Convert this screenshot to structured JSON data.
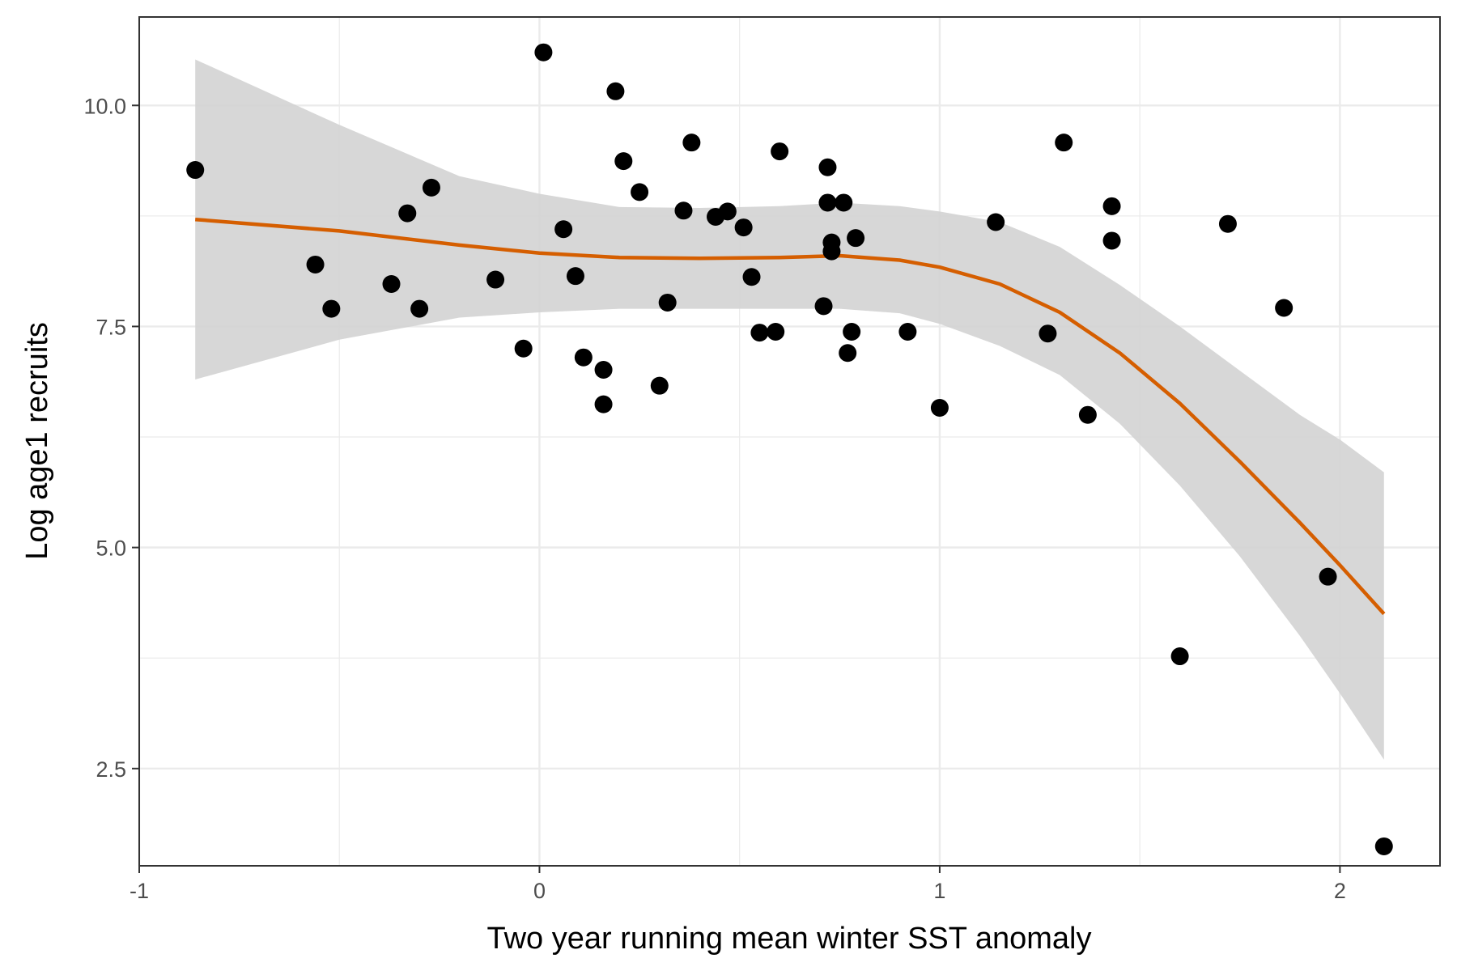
{
  "chart_data": {
    "type": "scatter",
    "title": "",
    "xlabel": "Two year running mean winter SST anomaly",
    "ylabel": "Log age1 recruits",
    "xlim": [
      -1.0,
      2.25
    ],
    "ylim": [
      1.4,
      11.0
    ],
    "x_ticks": [
      -1,
      0,
      1,
      2
    ],
    "x_tick_labels": [
      "-1",
      "0",
      "1",
      "2"
    ],
    "y_ticks": [
      2.5,
      5.0,
      7.5,
      10.0
    ],
    "y_tick_labels": [
      "2.5",
      "5.0",
      "7.5",
      "10.0"
    ],
    "grid": true,
    "legend": "none",
    "colors": {
      "points": "#000000",
      "smooth_line": "#d55e00",
      "confidence_band": "#d3d3d3",
      "grid": "#ebebeb",
      "panel_border": "#333333"
    },
    "points": [
      {
        "x": -0.86,
        "y": 9.27
      },
      {
        "x": -0.56,
        "y": 8.2
      },
      {
        "x": -0.52,
        "y": 7.7
      },
      {
        "x": -0.37,
        "y": 7.98
      },
      {
        "x": -0.33,
        "y": 8.78
      },
      {
        "x": -0.3,
        "y": 7.7
      },
      {
        "x": -0.27,
        "y": 9.07
      },
      {
        "x": -0.11,
        "y": 8.03
      },
      {
        "x": -0.04,
        "y": 7.25
      },
      {
        "x": 0.01,
        "y": 10.6
      },
      {
        "x": 0.06,
        "y": 8.6
      },
      {
        "x": 0.09,
        "y": 8.07
      },
      {
        "x": 0.11,
        "y": 7.15
      },
      {
        "x": 0.16,
        "y": 7.01
      },
      {
        "x": 0.16,
        "y": 6.62
      },
      {
        "x": 0.19,
        "y": 10.16
      },
      {
        "x": 0.21,
        "y": 9.37
      },
      {
        "x": 0.25,
        "y": 9.02
      },
      {
        "x": 0.3,
        "y": 6.83
      },
      {
        "x": 0.32,
        "y": 7.77
      },
      {
        "x": 0.36,
        "y": 8.81
      },
      {
        "x": 0.38,
        "y": 9.58
      },
      {
        "x": 0.44,
        "y": 8.74
      },
      {
        "x": 0.47,
        "y": 8.8
      },
      {
        "x": 0.51,
        "y": 8.62
      },
      {
        "x": 0.53,
        "y": 8.06
      },
      {
        "x": 0.55,
        "y": 7.43
      },
      {
        "x": 0.59,
        "y": 7.44
      },
      {
        "x": 0.6,
        "y": 9.48
      },
      {
        "x": 0.71,
        "y": 7.73
      },
      {
        "x": 0.72,
        "y": 8.9
      },
      {
        "x": 0.72,
        "y": 9.3
      },
      {
        "x": 0.73,
        "y": 8.35
      },
      {
        "x": 0.73,
        "y": 8.45
      },
      {
        "x": 0.76,
        "y": 8.9
      },
      {
        "x": 0.77,
        "y": 7.2
      },
      {
        "x": 0.78,
        "y": 7.44
      },
      {
        "x": 0.79,
        "y": 8.5
      },
      {
        "x": 0.92,
        "y": 7.44
      },
      {
        "x": 1.0,
        "y": 6.58
      },
      {
        "x": 1.14,
        "y": 8.68
      },
      {
        "x": 1.27,
        "y": 7.42
      },
      {
        "x": 1.31,
        "y": 9.58
      },
      {
        "x": 1.37,
        "y": 6.5
      },
      {
        "x": 1.43,
        "y": 8.86
      },
      {
        "x": 1.43,
        "y": 8.47
      },
      {
        "x": 1.6,
        "y": 3.77
      },
      {
        "x": 1.72,
        "y": 8.66
      },
      {
        "x": 1.86,
        "y": 7.71
      },
      {
        "x": 1.97,
        "y": 4.67
      },
      {
        "x": 2.11,
        "y": 1.62
      }
    ],
    "smooth_fit": {
      "x": [
        -0.86,
        -0.5,
        -0.2,
        0.0,
        0.2,
        0.4,
        0.6,
        0.75,
        0.9,
        1.0,
        1.15,
        1.3,
        1.45,
        1.6,
        1.75,
        1.9,
        2.0,
        2.11
      ],
      "y": [
        8.71,
        8.58,
        8.42,
        8.33,
        8.28,
        8.27,
        8.28,
        8.3,
        8.25,
        8.17,
        7.98,
        7.66,
        7.2,
        6.63,
        5.97,
        5.28,
        4.8,
        4.25
      ],
      "lower": [
        6.9,
        7.35,
        7.6,
        7.66,
        7.7,
        7.7,
        7.7,
        7.7,
        7.65,
        7.53,
        7.28,
        6.95,
        6.4,
        5.7,
        4.9,
        4.0,
        3.35,
        2.6
      ],
      "upper": [
        10.52,
        9.78,
        9.2,
        9.0,
        8.85,
        8.84,
        8.86,
        8.9,
        8.86,
        8.8,
        8.68,
        8.4,
        7.97,
        7.5,
        7.0,
        6.5,
        6.22,
        5.85
      ]
    }
  }
}
